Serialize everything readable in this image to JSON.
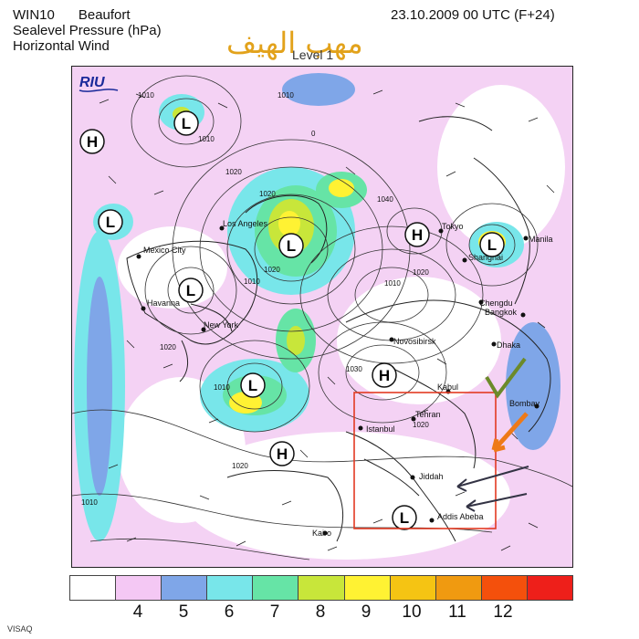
{
  "header": {
    "model": "WIN10",
    "scale": "Beaufort",
    "field1": "Sealevel Pressure (hPa)",
    "field2": "Horizontal Wind",
    "datetime": "23.10.2009 00 UTC (F+24)",
    "level": "Level 1",
    "arabic_title": "مهب الهيف"
  },
  "map": {
    "logo": "RIU",
    "pressure_centers": [
      {
        "type": "H",
        "name": "high-nw"
      },
      {
        "type": "L",
        "name": "low-arctic-canada"
      },
      {
        "type": "L",
        "name": "low-west-pacific"
      },
      {
        "type": "L",
        "name": "low-north-pacific"
      },
      {
        "type": "L",
        "name": "low-alaska"
      },
      {
        "type": "L",
        "name": "low-north-atlantic"
      },
      {
        "type": "H",
        "name": "high-siberia"
      },
      {
        "type": "L",
        "name": "low-east-asia"
      },
      {
        "type": "H",
        "name": "high-central-asia"
      },
      {
        "type": "H",
        "name": "high-north-africa"
      },
      {
        "type": "L",
        "name": "low-horn-of-africa"
      }
    ],
    "cities": [
      "Los Angeles",
      "Mexico City",
      "Havanna",
      "New York",
      "Tokyo",
      "Shanghai",
      "Manila",
      "Chengdu",
      "Bangkok",
      "Dhaka",
      "Novosibirsk",
      "Kabul",
      "Bombay",
      "Tehran",
      "Istanbul",
      "Jiddah",
      "Addis Abeba",
      "Kairo"
    ],
    "isobar_labels": [
      "1010",
      "1010",
      "1010",
      "1020",
      "1020",
      "1040",
      "1010",
      "1020",
      "1010",
      "1030",
      "1020",
      "1020",
      "1020",
      "1010",
      "1010",
      "1020",
      "0"
    ]
  },
  "legend": {
    "colors": [
      "#ffffff",
      "#f4c8f4",
      "#7fa6e8",
      "#78e6ea",
      "#66e4a6",
      "#c8e63a",
      "#fff233",
      "#f5c413",
      "#f09a10",
      "#f4500c",
      "#ee1f1a"
    ],
    "tick_labels": [
      "4",
      "5",
      "6",
      "7",
      "8",
      "9",
      "10",
      "11",
      "12"
    ]
  },
  "footer": {
    "credit": "VISAQ"
  }
}
